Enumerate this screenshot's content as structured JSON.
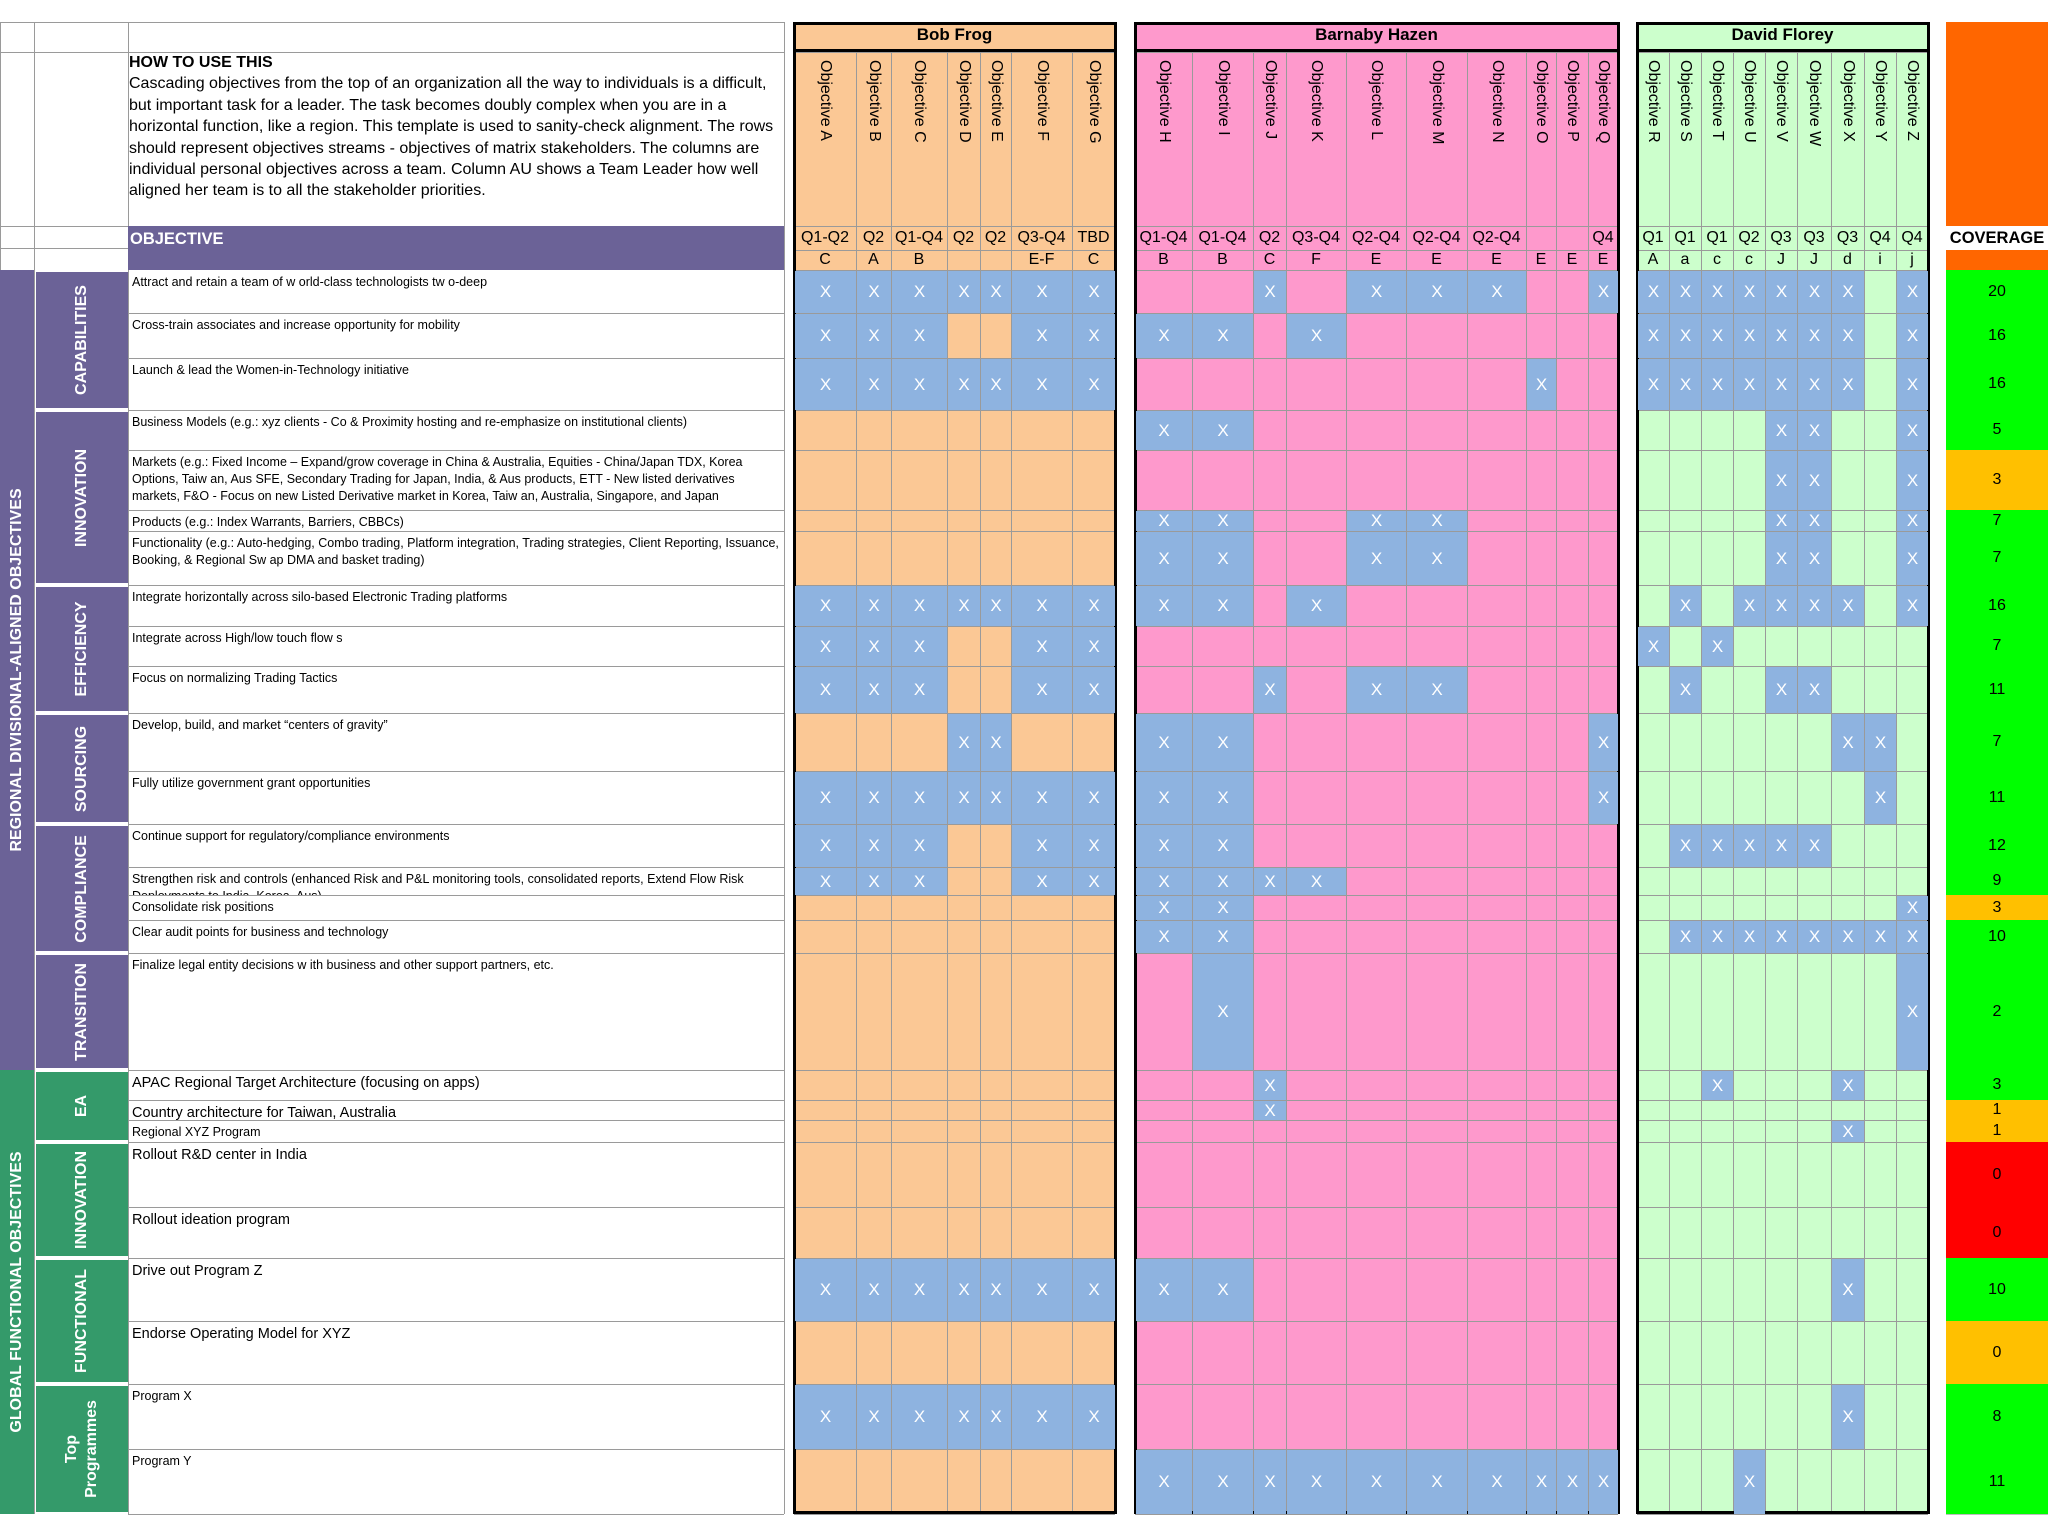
{
  "howto": {
    "title": "HOW TO USE THIS",
    "text": "Cascading objectives from the top of an organization all the way to individuals is a difficult, but important task for a leader. The task becomes doubly complex when you are in a horizontal function, like a region.  This template is used to sanity-check alignment.  The rows should represent objectives streams - objectives of matrix stakeholders.  The columns are individual personal objectives across a team. Column AU shows a Team Leader how well aligned her team is to all the stakeholder priorities."
  },
  "headers": {
    "objective": "OBJECTIVE",
    "coverage": "COVERAGE"
  },
  "colors": {
    "orange": "#fbc895",
    "pink": "#fe99cc",
    "green": "#ccffcc",
    "x_cell": "#8eb3e0",
    "regional": "#6b6297",
    "global": "#349a6a",
    "cov_top": "#ff6600",
    "cov_green": "#00ff00",
    "cov_amber": "#ffc000",
    "cov_red": "#ff0000"
  },
  "people": [
    {
      "name": "Bob Frog",
      "color": "orange",
      "objectives": [
        {
          "label": "Objective A",
          "quarter": "Q1-Q2",
          "letter": "C"
        },
        {
          "label": "Objective B",
          "quarter": "Q2",
          "letter": "A"
        },
        {
          "label": "Objective C",
          "quarter": "Q1-Q4",
          "letter": "B"
        },
        {
          "label": "Objective D",
          "quarter": "Q2",
          "letter": ""
        },
        {
          "label": "Objective E",
          "quarter": "Q2",
          "letter": ""
        },
        {
          "label": "Objective F",
          "quarter": "Q3-Q4",
          "letter": "E-F"
        },
        {
          "label": "Objective G",
          "quarter": "TBD",
          "letter": "C"
        }
      ]
    },
    {
      "name": "Barnaby Hazen",
      "color": "pink",
      "objectives": [
        {
          "label": "Objective H",
          "quarter": "Q1-Q4",
          "letter": "B"
        },
        {
          "label": "Objective I",
          "quarter": "Q1-Q4",
          "letter": "B"
        },
        {
          "label": "Objective J",
          "quarter": "Q2",
          "letter": "C"
        },
        {
          "label": "Objective K",
          "quarter": "Q3-Q4",
          "letter": "F"
        },
        {
          "label": "Objective L",
          "quarter": "Q2-Q4",
          "letter": "E"
        },
        {
          "label": "Objective M",
          "quarter": "Q2-Q4",
          "letter": "E"
        },
        {
          "label": "Objective N",
          "quarter": "Q2-Q4",
          "letter": "E"
        },
        {
          "label": "Objective O",
          "quarter": "",
          "letter": "E"
        },
        {
          "label": "Objective P",
          "quarter": "",
          "letter": "E"
        },
        {
          "label": "Objective Q",
          "quarter": "Q4",
          "letter": "E"
        }
      ]
    },
    {
      "name": "David Florey",
      "color": "green",
      "objectives": [
        {
          "label": "Objective R",
          "quarter": "Q1",
          "letter": "A"
        },
        {
          "label": "Objective S",
          "quarter": "Q1",
          "letter": "a"
        },
        {
          "label": "Objective T",
          "quarter": "Q1",
          "letter": "c"
        },
        {
          "label": "Objective U",
          "quarter": "Q2",
          "letter": "c"
        },
        {
          "label": "Objective V",
          "quarter": "Q3",
          "letter": "J"
        },
        {
          "label": "Objective W",
          "quarter": "Q3",
          "letter": "J"
        },
        {
          "label": "Objective X",
          "quarter": "Q3",
          "letter": "d"
        },
        {
          "label": "Objective Y",
          "quarter": "Q4",
          "letter": "i"
        },
        {
          "label": "Objective Z",
          "quarter": "Q4",
          "letter": "j"
        }
      ]
    }
  ],
  "groups": [
    {
      "label": "REGIONAL DIVISIONAL-ALIGNED OBJECTIVES",
      "color": "regional"
    },
    {
      "label": "GLOBAL FUNCTIONAL OBJECTIVES",
      "color": "global"
    }
  ],
  "categories": [
    {
      "label": "CAPABILITIES",
      "group": 0
    },
    {
      "label": "INNOVATION",
      "group": 0
    },
    {
      "label": "EFFICIENCY",
      "group": 0
    },
    {
      "label": "SOURCING",
      "group": 0
    },
    {
      "label": "COMPLIANCE",
      "group": 0
    },
    {
      "label": "TRANSITION",
      "group": 0
    },
    {
      "label": "EA",
      "group": 1
    },
    {
      "label": "INNOVATION",
      "group": 1
    },
    {
      "label": "FUNCTIONAL",
      "group": 1
    },
    {
      "label": "Top Programmes",
      "group": 1
    }
  ],
  "rows": [
    {
      "cat": 0,
      "label": "Attract and retain a team of w orld-class technologists tw o-deep",
      "marks": "1111111 0010111001 111111101",
      "coverage": "20",
      "cov_color": "cov_green"
    },
    {
      "cat": 0,
      "label": "Cross-train associates and increase opportunity for mobility",
      "marks": "1110011 1101000000 111111101",
      "coverage": "16",
      "cov_color": "cov_green"
    },
    {
      "cat": 0,
      "label": "Launch & lead the Women-in-Technology initiative",
      "marks": "1111111 0000000100 111111101",
      "coverage": "16",
      "cov_color": "cov_green"
    },
    {
      "cat": 1,
      "label": "Business Models (e.g.: xyz clients - Co & Proximity hosting and re-emphasize on institutional clients)",
      "marks": "0000000 1100000000 000011001",
      "coverage": "5",
      "cov_color": "cov_green"
    },
    {
      "cat": 1,
      "label": "Markets  (e.g.: Fixed Income – Expand/grow  coverage in China & Australia, Equities - China/Japan TDX, Korea Options, Taiw an, Aus SFE, Secondary Trading for Japan, India, & Aus products, ETT - New  listed derivatives markets, F&O - Focus on new  Listed Derivative market in Korea, Taiw an, Australia, Singapore, and Japan",
      "marks": "0000000 0000000000 000011001",
      "coverage": "3",
      "cov_color": "cov_amber"
    },
    {
      "cat": 1,
      "label": "Products (e.g.: Index Warrants, Barriers, CBBCs)",
      "marks": "0000000 1100110000 000011001",
      "coverage": "7",
      "cov_color": "cov_green"
    },
    {
      "cat": 1,
      "label": "Functionality (e.g.: Auto-hedging, Combo trading, Platform integration, Trading strategies, Client Reporting, Issuance, Booking, & Regional Sw ap DMA and basket trading)",
      "marks": "0000000 1100110000 000011001",
      "coverage": "7",
      "cov_color": "cov_green"
    },
    {
      "cat": 2,
      "label": "Integrate horizontally across silo-based Electronic Trading platforms",
      "marks": "1111111 1101000000 010111101",
      "coverage": "16",
      "cov_color": "cov_green"
    },
    {
      "cat": 2,
      "label": "Integrate across High/low  touch flow s",
      "marks": "1110011 0000000000 101000000",
      "coverage": "7",
      "cov_color": "cov_green"
    },
    {
      "cat": 2,
      "label": "Focus on normalizing Trading Tactics",
      "marks": "1110011 0010110000 010011000",
      "coverage": "11",
      "cov_color": "cov_green"
    },
    {
      "cat": 3,
      "label": "Develop, build, and market “centers of gravity”",
      "marks": "0001100 1100000001 000000110",
      "coverage": "7",
      "cov_color": "cov_green"
    },
    {
      "cat": 3,
      "label": "Fully utilize government grant opportunities",
      "marks": "1111111 1100000001 000000010",
      "coverage": "11",
      "cov_color": "cov_green"
    },
    {
      "cat": 4,
      "label": "Continue support for regulatory/compliance environments",
      "marks": "1110011 1100000000 011111000",
      "coverage": "12",
      "cov_color": "cov_green"
    },
    {
      "cat": 4,
      "label": "Strengthen risk and controls (enhanced Risk and P&L monitoring tools, consolidated reports, Extend Flow  Risk Deployments to India, Korea, Aus)",
      "marks": "1110011 1111000000 000000000",
      "coverage": "9",
      "cov_color": "cov_green"
    },
    {
      "cat": 4,
      "label": "Consolidate risk positions",
      "marks": "0000000 1100000000 000000001",
      "coverage": "3",
      "cov_color": "cov_amber"
    },
    {
      "cat": 4,
      "label": "Clear audit points for business and technology",
      "marks": "0000000 1100000000 011111111",
      "coverage": "10",
      "cov_color": "cov_green"
    },
    {
      "cat": 5,
      "label": "Finalize legal entity decisions w ith business and other support partners, etc.",
      "marks": "0000000 0100000000 000000001",
      "coverage": "2",
      "cov_color": "cov_green"
    },
    {
      "cat": 6,
      "label": "APAC Regional Target Architecture (focusing on apps)",
      "marks": "0000000 0010000000 001000100",
      "coverage": "3",
      "cov_color": "cov_green",
      "big": true
    },
    {
      "cat": 6,
      "label": "Country architecture for Taiwan, Australia",
      "marks": "0000000 0010000000 000000000",
      "coverage": "1",
      "cov_color": "cov_amber",
      "big": true
    },
    {
      "cat": 6,
      "label": "Regional XYZ Program",
      "marks": "0000000 0000000000 000000100",
      "coverage": "1",
      "cov_color": "cov_amber"
    },
    {
      "cat": 7,
      "label": "Rollout R&D center in India",
      "marks": "0000000 0000000000 000000000",
      "coverage": "0",
      "cov_color": "cov_red",
      "big": true
    },
    {
      "cat": 7,
      "label": "Rollout ideation program",
      "marks": "0000000 0000000000 000000000",
      "coverage": "0",
      "cov_color": "cov_red",
      "big": true
    },
    {
      "cat": 8,
      "label": "Drive out Program Z",
      "marks": "1111111 1100000000 000000100",
      "coverage": "10",
      "cov_color": "cov_green",
      "big": true
    },
    {
      "cat": 8,
      "label": "Endorse Operating Model for XYZ",
      "marks": "0000000 0000000000 000000000",
      "coverage": "0",
      "cov_color": "cov_amber",
      "big": true
    },
    {
      "cat": 9,
      "label": "Program X",
      "marks": "1111111 0000000000 000000100",
      "coverage": "8",
      "cov_color": "cov_green"
    },
    {
      "cat": 9,
      "label": "Program Y",
      "marks": "0000000 1111111111 000100000",
      "coverage": "11",
      "cov_color": "cov_green"
    }
  ]
}
